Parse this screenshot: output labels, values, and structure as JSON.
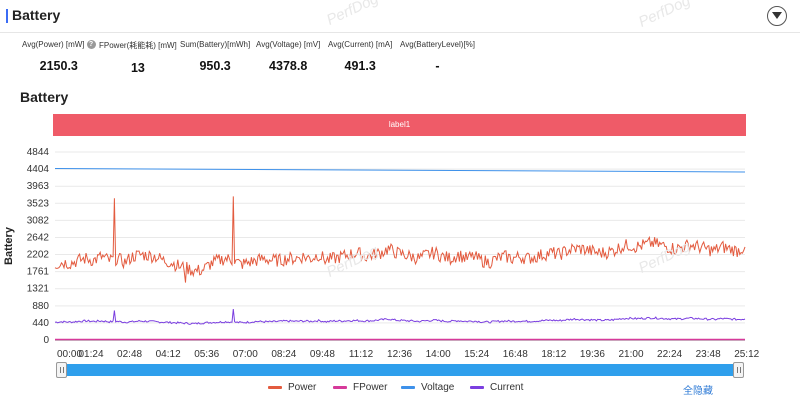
{
  "header": {
    "title": "Battery"
  },
  "metrics": [
    {
      "label": "Avg(Power) [mW]",
      "value": "2150.3",
      "has_help": true
    },
    {
      "label": "FPower(耗能耗) [mW]",
      "value": "13",
      "has_help": false
    },
    {
      "label": "Sum(Battery)[mWh]",
      "value": "950.3",
      "has_help": false
    },
    {
      "label": "Avg(Voltage) [mV]",
      "value": "4378.8",
      "has_help": false
    },
    {
      "label": "Avg(Current) [mA]",
      "value": "491.3",
      "has_help": false
    },
    {
      "label": "Avg(BatteryLevel)[%]",
      "value": "-",
      "has_help": false
    }
  ],
  "section_title": "Battery",
  "label_band": "label1",
  "watermark_text": "PerfDog",
  "legend": {
    "items": [
      {
        "name": "Power",
        "color": "#e35b3f"
      },
      {
        "name": "FPower",
        "color": "#d63a9a"
      },
      {
        "name": "Voltage",
        "color": "#3e91ea"
      },
      {
        "name": "Current",
        "color": "#7b3fe0"
      }
    ],
    "hide_all_label": "全隐藏"
  },
  "chart_data": {
    "type": "line",
    "ylabel": "Battery",
    "ylim": [
      0,
      4844
    ],
    "y_ticks": [
      0,
      440,
      880,
      1321,
      1761,
      2202,
      2642,
      3082,
      3523,
      3963,
      4404,
      4844
    ],
    "x_tick_labels": [
      "00:00",
      "01:24",
      "02:48",
      "04:12",
      "05:36",
      "07:00",
      "08:24",
      "09:48",
      "11:12",
      "12:36",
      "14:00",
      "15:24",
      "16:48",
      "18:12",
      "19:36",
      "21:00",
      "22:24",
      "23:48",
      "25:12"
    ],
    "x_range_minutes": [
      0,
      27.5
    ],
    "series": [
      {
        "name": "Power",
        "color": "#e35b3f",
        "values": [
          1950,
          2000,
          1980,
          2050,
          2100,
          2050,
          2150,
          2050,
          2100,
          2000,
          2150,
          2200,
          2180,
          2150,
          2050,
          2000,
          1900,
          1850,
          1780,
          1800,
          1950,
          2050,
          2100,
          2050,
          1950,
          2000,
          2050,
          2100,
          2050,
          2050,
          2100,
          2100,
          2150,
          2100,
          2200,
          2050,
          2100,
          2150,
          2200,
          2250,
          2150,
          2200,
          2250,
          2350,
          2250,
          2200,
          2150,
          2100,
          2200,
          2250,
          2150,
          2100,
          2200,
          2100,
          2150,
          2050,
          2000,
          2100,
          2150,
          2100,
          2150,
          2100,
          2150,
          2200,
          2250,
          2200,
          2300,
          2350,
          2350,
          2300,
          2250,
          2250,
          2300,
          2400,
          2450,
          2400,
          2450,
          2500,
          2450,
          2400,
          2350,
          2400,
          2450,
          2400,
          2350,
          2300,
          2400,
          2350,
          2300,
          2400
        ],
        "spikes": [
          {
            "at_minute": 2.35,
            "value": 3650
          },
          {
            "at_minute": 7.1,
            "value": 3700
          },
          {
            "at_minute": 5.2,
            "value": 1480
          }
        ]
      },
      {
        "name": "FPower",
        "color": "#d63a9a",
        "constant": 13
      },
      {
        "name": "Voltage",
        "color": "#3e91ea",
        "start": 4420,
        "end": 4330
      },
      {
        "name": "Current",
        "color": "#7b3fe0",
        "values": [
          460,
          470,
          460,
          480,
          490,
          480,
          490,
          470,
          480,
          460,
          470,
          490,
          480,
          470,
          460,
          450,
          440,
          430,
          420,
          440,
          450,
          460,
          470,
          460,
          450,
          460,
          480,
          470,
          470,
          480,
          490,
          480,
          490,
          480,
          500,
          470,
          490,
          490,
          500,
          500,
          490,
          500,
          520,
          540,
          510,
          500,
          490,
          480,
          500,
          510,
          490,
          480,
          500,
          480,
          490,
          470,
          460,
          480,
          490,
          480,
          490,
          480,
          490,
          500,
          510,
          500,
          520,
          540,
          530,
          520,
          510,
          510,
          520,
          550,
          560,
          550,
          560,
          570,
          560,
          550,
          540,
          550,
          560,
          550,
          540,
          530,
          550,
          540,
          530,
          540
        ],
        "spikes": [
          {
            "at_minute": 2.35,
            "value": 760
          },
          {
            "at_minute": 7.1,
            "value": 800
          }
        ]
      }
    ]
  }
}
